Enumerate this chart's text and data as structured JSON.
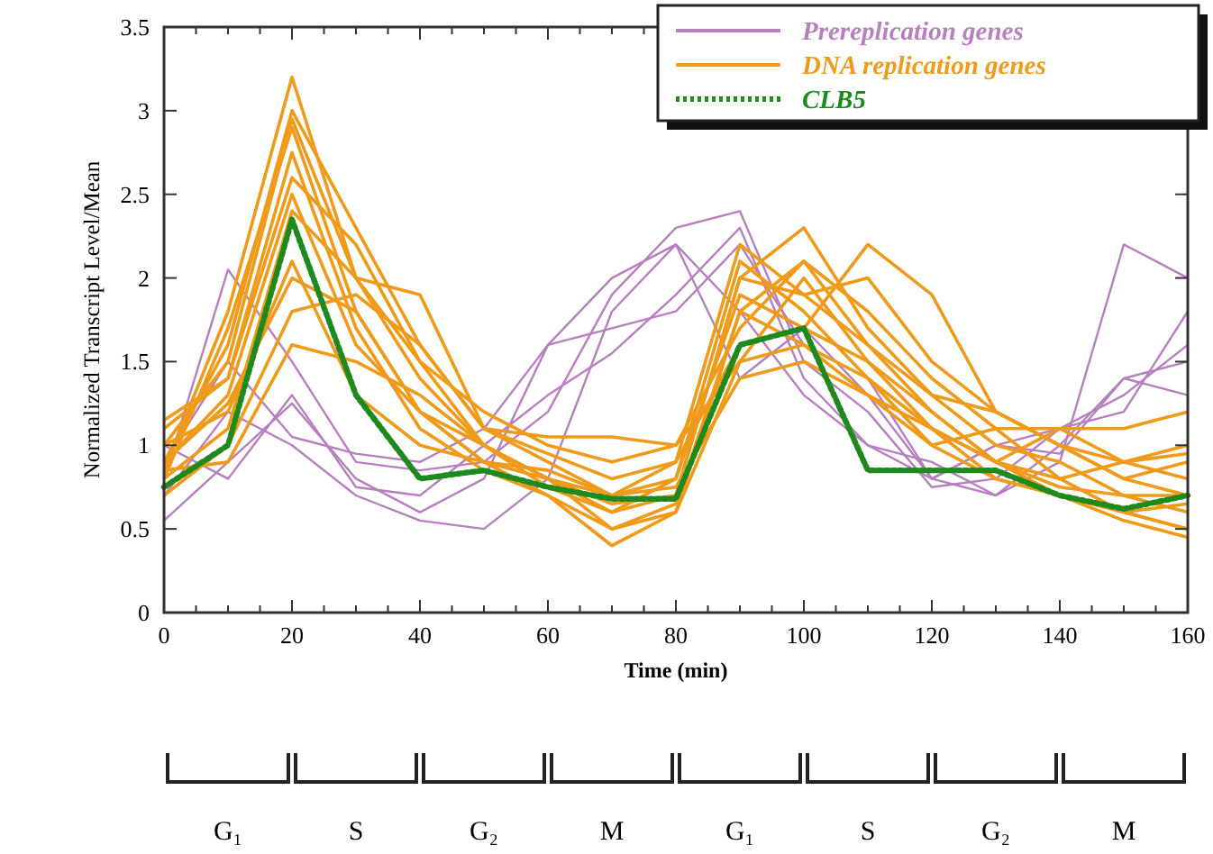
{
  "chart_data": {
    "type": "line",
    "xlabel": "Time (min)",
    "ylabel": "Normalized Transcript Level/Mean",
    "x": [
      0,
      10,
      20,
      30,
      40,
      50,
      60,
      70,
      80,
      90,
      100,
      110,
      120,
      130,
      140,
      150,
      160
    ],
    "xlim": [
      0,
      160
    ],
    "ylim": [
      0,
      3.5
    ],
    "xticks": [
      0,
      {
        "value": 5,
        "label": null
      },
      {
        "value": 10,
        "label": null
      },
      {
        "value": 15,
        "label": null
      },
      20,
      {
        "value": 25,
        "label": null
      },
      {
        "value": 30,
        "label": null
      },
      {
        "value": 35,
        "label": null
      },
      40,
      {
        "value": 45,
        "label": null
      },
      {
        "value": 50,
        "label": null
      },
      {
        "value": 55,
        "label": null
      },
      60,
      {
        "value": 65,
        "label": null
      },
      {
        "value": 70,
        "label": null
      },
      {
        "value": 75,
        "label": null
      },
      80,
      {
        "value": 85,
        "label": null
      },
      {
        "value": 90,
        "label": null
      },
      {
        "value": 95,
        "label": null
      },
      100,
      {
        "value": 105,
        "label": null
      },
      {
        "value": 110,
        "label": null
      },
      {
        "value": 115,
        "label": null
      },
      120,
      {
        "value": 125,
        "label": null
      },
      {
        "value": 130,
        "label": null
      },
      {
        "value": 135,
        "label": null
      },
      140,
      {
        "value": 145,
        "label": null
      },
      {
        "value": 150,
        "label": null
      },
      {
        "value": 155,
        "label": null
      },
      160
    ],
    "yticks": [
      0,
      0.5,
      1,
      1.5,
      2,
      2.5,
      3,
      3.5
    ],
    "grid": false,
    "legend": "top right",
    "marker": "none",
    "annotations": [
      "G₁",
      "S",
      "G₂",
      "M",
      "G₁",
      "S",
      "G₂",
      "M"
    ],
    "series": [
      {
        "name": "Prereplication genes",
        "color": "#b77fc0",
        "values": [
          0.55,
          0.9,
          1.25,
          0.8,
          0.6,
          0.8,
          1.6,
          2.0,
          2.2,
          1.8,
          1.3,
          1.0,
          0.8,
          0.7,
          0.9,
          2.2,
          2.0
        ]
      },
      {
        "color": "#b77fc0",
        "values": [
          0.8,
          2.05,
          1.5,
          0.9,
          0.85,
          0.9,
          1.2,
          1.9,
          2.3,
          2.4,
          1.5,
          1.2,
          0.75,
          0.8,
          1.1,
          1.3,
          1.6
        ]
      },
      {
        "color": "#b77fc0",
        "values": [
          1.0,
          0.8,
          1.3,
          0.75,
          0.7,
          1.0,
          1.3,
          1.55,
          1.9,
          2.3,
          1.4,
          1.0,
          0.9,
          0.7,
          1.0,
          1.4,
          1.5
        ]
      },
      {
        "color": "#b77fc0",
        "values": [
          0.7,
          1.2,
          1.0,
          0.7,
          0.55,
          0.5,
          0.8,
          1.8,
          2.2,
          1.4,
          1.7,
          1.3,
          0.8,
          1.0,
          1.1,
          1.2,
          1.8
        ]
      },
      {
        "color": "#b77fc0",
        "values": [
          0.9,
          1.5,
          1.05,
          0.95,
          0.9,
          1.1,
          1.6,
          1.7,
          1.8,
          2.2,
          1.6,
          1.4,
          0.8,
          1.0,
          0.95,
          1.4,
          1.3
        ]
      },
      {
        "name": "DNA replication genes",
        "color": "#f09a1a",
        "values": [
          0.85,
          1.8,
          3.2,
          2.0,
          1.5,
          1.0,
          0.8,
          0.6,
          0.7,
          2.0,
          2.3,
          1.7,
          1.3,
          1.0,
          0.9,
          0.7,
          0.6
        ]
      },
      {
        "color": "#f09a1a",
        "values": [
          0.9,
          1.6,
          3.0,
          2.3,
          1.6,
          1.1,
          0.9,
          0.7,
          0.9,
          2.2,
          1.9,
          2.0,
          1.5,
          1.2,
          1.0,
          0.9,
          0.8
        ]
      },
      {
        "color": "#f09a1a",
        "values": [
          1.0,
          1.5,
          2.95,
          2.0,
          1.4,
          1.0,
          0.8,
          0.5,
          0.6,
          1.8,
          2.1,
          1.8,
          1.4,
          1.1,
          0.8,
          0.6,
          0.5
        ]
      },
      {
        "color": "#f09a1a",
        "values": [
          0.8,
          1.7,
          2.9,
          1.8,
          1.2,
          0.9,
          0.85,
          0.7,
          0.8,
          1.9,
          1.7,
          1.5,
          1.2,
          0.9,
          0.7,
          0.55,
          0.45
        ]
      },
      {
        "color": "#f09a1a",
        "values": [
          1.1,
          1.4,
          2.6,
          2.2,
          1.5,
          1.2,
          1.0,
          0.9,
          1.0,
          1.7,
          2.1,
          1.6,
          1.3,
          1.2,
          1.0,
          0.8,
          0.7
        ]
      },
      {
        "color": "#f09a1a",
        "values": [
          0.9,
          1.3,
          2.5,
          1.6,
          1.2,
          1.0,
          0.75,
          0.6,
          0.8,
          2.1,
          1.8,
          1.4,
          1.1,
          0.9,
          0.8,
          0.9,
          1.0
        ]
      },
      {
        "color": "#f09a1a",
        "values": [
          0.8,
          1.1,
          2.4,
          2.0,
          1.9,
          1.1,
          0.95,
          0.8,
          0.9,
          1.6,
          1.7,
          2.2,
          1.9,
          1.2,
          1.0,
          0.8,
          0.9
        ]
      },
      {
        "color": "#f09a1a",
        "values": [
          1.0,
          1.2,
          2.1,
          1.3,
          1.0,
          0.9,
          0.7,
          0.4,
          0.6,
          1.5,
          2.0,
          1.5,
          1.1,
          0.8,
          0.7,
          0.6,
          0.5
        ]
      },
      {
        "color": "#f09a1a",
        "values": [
          0.7,
          1.0,
          1.8,
          1.9,
          1.6,
          1.1,
          1.05,
          1.05,
          1.0,
          1.5,
          1.6,
          1.3,
          1.0,
          1.1,
          1.1,
          1.1,
          1.2
        ]
      },
      {
        "color": "#f09a1a",
        "values": [
          0.85,
          0.9,
          1.6,
          1.5,
          1.3,
          1.0,
          0.8,
          0.7,
          0.75,
          1.4,
          1.5,
          1.3,
          1.1,
          0.9,
          0.75,
          0.7,
          0.7
        ]
      },
      {
        "color": "#f09a1a",
        "values": [
          0.9,
          1.25,
          2.0,
          1.8,
          1.2,
          0.9,
          0.8,
          0.65,
          0.7,
          2.0,
          1.9,
          1.6,
          1.2,
          0.9,
          1.1,
          0.9,
          0.95
        ]
      },
      {
        "color": "#f09a1a",
        "values": [
          1.15,
          1.4,
          2.75,
          1.7,
          1.1,
          0.85,
          0.7,
          0.5,
          0.65,
          1.8,
          1.6,
          1.4,
          1.0,
          0.8,
          0.7,
          0.6,
          0.65
        ]
      },
      {
        "name": "CLB5",
        "color": "#1e8a1e",
        "line_style": "dotted",
        "values": [
          0.75,
          1.0,
          2.35,
          1.3,
          0.8,
          0.85,
          0.75,
          0.68,
          0.68,
          1.6,
          1.7,
          0.85,
          0.85,
          0.85,
          0.7,
          0.62,
          0.7
        ]
      }
    ]
  }
}
